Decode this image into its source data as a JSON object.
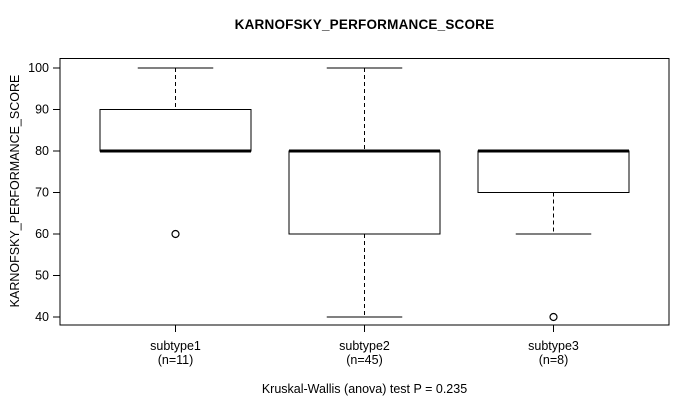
{
  "chart_data": {
    "type": "boxplot",
    "title": "KARNOFSKY_PERFORMANCE_SCORE",
    "ylabel": "KARNOFSKY_PERFORMANCE_SCORE",
    "xlabel": "",
    "footnote": "Kruskal-Wallis (anova) test P = 0.235",
    "ylim": [
      40,
      100
    ],
    "y_ticks": [
      40,
      50,
      60,
      70,
      80,
      90,
      100
    ],
    "grid": false,
    "legend": "none",
    "colors": {
      "stroke": "#000000",
      "box_fill": "#ffffff",
      "background": "#ffffff"
    },
    "groups": [
      {
        "label": "subtype1",
        "count_label": "(n=11)",
        "n": 11,
        "whisker_low": 80,
        "q1": 80,
        "median": 80,
        "q3": 90,
        "whisker_high": 100,
        "outliers": [
          60
        ]
      },
      {
        "label": "subtype2",
        "count_label": "(n=45)",
        "n": 45,
        "whisker_low": 40,
        "q1": 60,
        "median": 80,
        "q3": 80,
        "whisker_high": 100,
        "outliers": []
      },
      {
        "label": "subtype3",
        "count_label": "(n=8)",
        "n": 8,
        "whisker_low": 60,
        "q1": 70,
        "median": 80,
        "q3": 80,
        "whisker_high": 80,
        "outliers": [
          40
        ]
      }
    ]
  }
}
